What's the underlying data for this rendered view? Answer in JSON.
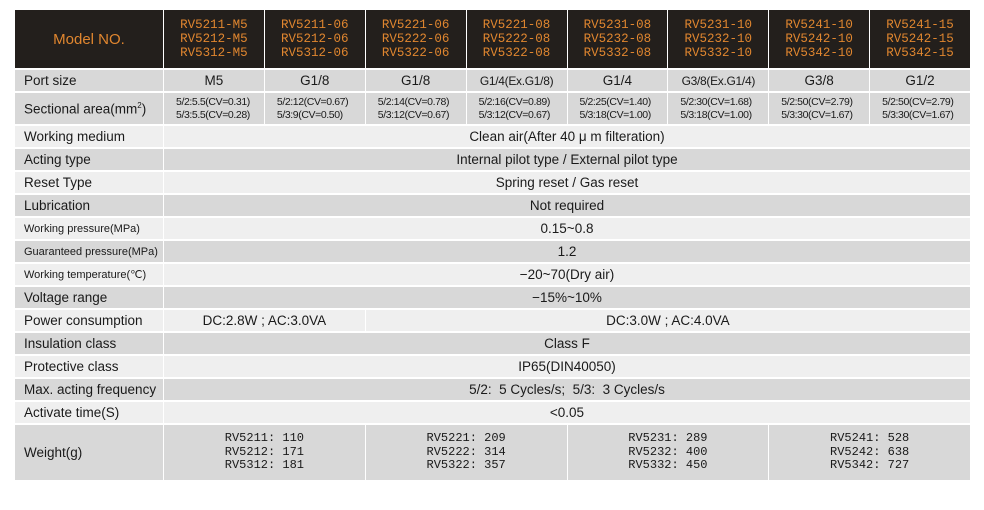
{
  "header": {
    "label": "Model NO.",
    "models": [
      [
        "RV5211-M5",
        "RV5212-M5",
        "RV5312-M5"
      ],
      [
        "RV5211-06",
        "RV5212-06",
        "RV5312-06"
      ],
      [
        "RV5221-06",
        "RV5222-06",
        "RV5322-06"
      ],
      [
        "RV5221-08",
        "RV5222-08",
        "RV5322-08"
      ],
      [
        "RV5231-08",
        "RV5232-08",
        "RV5332-08"
      ],
      [
        "RV5231-10",
        "RV5232-10",
        "RV5332-10"
      ],
      [
        "RV5241-10",
        "RV5242-10",
        "RV5342-10"
      ],
      [
        "RV5241-15",
        "RV5242-15",
        "RV5342-15"
      ]
    ]
  },
  "rows": {
    "port_size": {
      "label": "Port size",
      "values": [
        "M5",
        "G1/8",
        "G1/8",
        "G1/4(Ex.G1/8)",
        "G1/4",
        "G3/8(Ex.G1/4)",
        "G3/8",
        "G1/2"
      ]
    },
    "sectional_area": {
      "label": "Sectional area(mm",
      "label_sup": "2",
      "label_end": ")",
      "values": [
        [
          "5/2:5.5(CV=0.31)",
          "5/3:5.5(CV=0.28)"
        ],
        [
          "5/2:12(CV=0.67)",
          "5/3:9(CV=0.50)"
        ],
        [
          "5/2:14(CV=0.78)",
          "5/3:12(CV=0.67)"
        ],
        [
          "5/2:16(CV=0.89)",
          "5/3:12(CV=0.67)"
        ],
        [
          "5/2:25(CV=1.40)",
          "5/3:18(CV=1.00)"
        ],
        [
          "5/2:30(CV=1.68)",
          "5/3:18(CV=1.00)"
        ],
        [
          "5/2:50(CV=2.79)",
          "5/3:30(CV=1.67)"
        ],
        [
          "5/2:50(CV=2.79)",
          "5/3:30(CV=1.67)"
        ]
      ]
    },
    "working_medium": {
      "label": "Working medium",
      "value": "Clean air(After 40 μ m filteration)"
    },
    "acting_type": {
      "label": "Acting type",
      "value": "Internal pilot type / External pilot type"
    },
    "reset_type": {
      "label": "Reset Type",
      "value": "Spring reset / Gas reset"
    },
    "lubrication": {
      "label": "Lubrication",
      "value": "Not required"
    },
    "working_pressure": {
      "label": "Working pressure(MPa)",
      "value": "0.15~0.8"
    },
    "guaranteed_pressure": {
      "label": "Guaranteed pressure(MPa)",
      "value": "1.2"
    },
    "working_temperature": {
      "label": "Working temperature(℃)",
      "value": "−20~70(Dry air)"
    },
    "voltage_range": {
      "label": "Voltage range",
      "value": "−15%~10%"
    },
    "power_consumption": {
      "label": "Power consumption",
      "values": [
        "DC:2.8W ; AC:3.0VA",
        "DC:3.0W ; AC:4.0VA"
      ]
    },
    "insulation_class": {
      "label": "Insulation class",
      "value": "Class F"
    },
    "protective_class": {
      "label": "Protective class",
      "value": "IP65(DIN40050)"
    },
    "max_acting_frequency": {
      "label": "Max. acting frequency",
      "value": "5/2:  5 Cycles/s;  5/3:  3 Cycles/s"
    },
    "activate_time": {
      "label": "Activate time(S)",
      "value": "<0.05"
    },
    "weight": {
      "label": "Weight(g)",
      "groups": [
        [
          "RV5211: 110",
          "RV5212: 171",
          "RV5312: 181"
        ],
        [
          "RV5221: 209",
          "RV5222: 314",
          "RV5322: 357"
        ],
        [
          "RV5231: 289",
          "RV5232: 400",
          "RV5332: 450"
        ],
        [
          "RV5241: 528",
          "RV5242: 638",
          "RV5342: 727"
        ]
      ]
    }
  }
}
